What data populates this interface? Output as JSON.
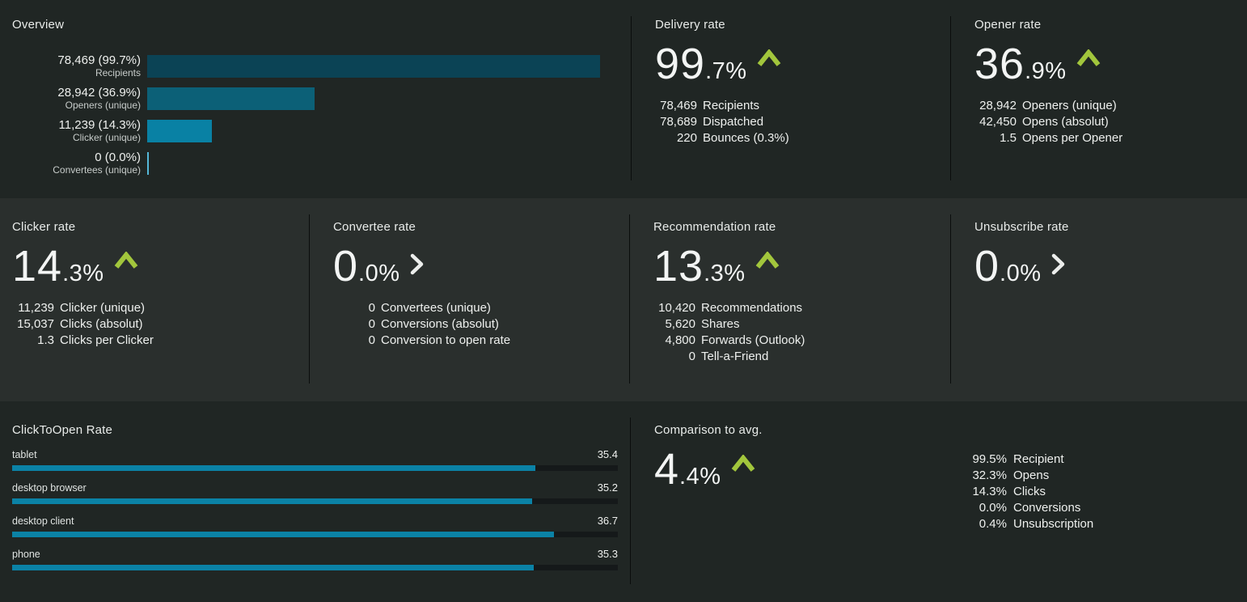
{
  "colors": {
    "row_dark_bg": "#202624",
    "row_light_bg": "#2a2f2d",
    "divider": "#0a0d0c",
    "accent_teal": "#0b82a6",
    "trend_up_green": "#a2c63c",
    "text_primary": "#eef0ee"
  },
  "chart_data": [
    {
      "id": "overview",
      "type": "bar",
      "orientation": "horizontal",
      "title": "Overview",
      "xlim": [
        0,
        100
      ],
      "unit": "percent",
      "rows": [
        {
          "value_label": "78,469 (99.7%)",
          "name": "Recipients",
          "count": 78469,
          "pct": 99.7,
          "color": "#0b4355"
        },
        {
          "value_label": "28,942 (36.9%)",
          "name": "Openers (unique)",
          "count": 28942,
          "pct": 36.9,
          "color": "#0c6077"
        },
        {
          "value_label": "11,239 (14.3%)",
          "name": "Clicker (unique)",
          "count": 11239,
          "pct": 14.3,
          "color": "#0981a4"
        },
        {
          "value_label": "0 (0.0%)",
          "name": "Convertees (unique)",
          "count": 0,
          "pct": 0.0,
          "color": "#54b8d9"
        }
      ]
    },
    {
      "id": "click_to_open",
      "type": "bar",
      "orientation": "horizontal",
      "title": "ClickToOpen Rate",
      "categories": [
        "tablet",
        "desktop browser",
        "desktop client",
        "phone"
      ],
      "values": [
        35.4,
        35.2,
        36.7,
        35.3
      ],
      "xlim": [
        0,
        41
      ],
      "grid": false,
      "legend": false
    }
  ],
  "metrics": {
    "delivery": {
      "title": "Delivery rate",
      "value_int": "99",
      "value_frac": ".7%",
      "trend": "up",
      "details": [
        {
          "num": "78,469",
          "label": "Recipients"
        },
        {
          "num": "78,689",
          "label": "Dispatched"
        },
        {
          "num": "220",
          "label": "Bounces (0.3%)"
        }
      ]
    },
    "opener": {
      "title": "Opener rate",
      "value_int": "36",
      "value_frac": ".9%",
      "trend": "up",
      "details": [
        {
          "num": "28,942",
          "label": "Openers (unique)"
        },
        {
          "num": "42,450",
          "label": "Opens (absolut)"
        },
        {
          "num": "1.5",
          "label": "Opens per Opener"
        }
      ]
    },
    "clicker": {
      "title": "Clicker rate",
      "value_int": "14",
      "value_frac": ".3%",
      "trend": "up",
      "details": [
        {
          "num": "11,239",
          "label": "Clicker (unique)"
        },
        {
          "num": "15,037",
          "label": "Clicks (absolut)"
        },
        {
          "num": "1.3",
          "label": "Clicks per Clicker"
        }
      ]
    },
    "convertee": {
      "title": "Convertee rate",
      "value_int": "0",
      "value_frac": ".0%",
      "trend": "neutral",
      "details": [
        {
          "num": "0",
          "label": "Convertees (unique)"
        },
        {
          "num": "0",
          "label": "Conversions (absolut)"
        },
        {
          "num": "0",
          "label": "Conversion to open rate"
        }
      ]
    },
    "recommendation": {
      "title": "Recommendation rate",
      "value_int": "13",
      "value_frac": ".3%",
      "trend": "up",
      "details": [
        {
          "num": "10,420",
          "label": "Recommendations"
        },
        {
          "num": "5,620",
          "label": "Shares"
        },
        {
          "num": "4,800",
          "label": "Forwards (Outlook)"
        },
        {
          "num": "0",
          "label": "Tell-a-Friend"
        }
      ]
    },
    "unsubscribe": {
      "title": "Unsubscribe rate",
      "value_int": "0",
      "value_frac": ".0%",
      "trend": "neutral",
      "details": []
    }
  },
  "comparison": {
    "title": "Comparison to avg.",
    "value_int": "4",
    "value_frac": ".4%",
    "trend": "up",
    "stats": [
      {
        "num": "99.5%",
        "label": "Recipient"
      },
      {
        "num": "32.3%",
        "label": "Opens"
      },
      {
        "num": "14.3%",
        "label": "Clicks"
      },
      {
        "num": "0.0%",
        "label": "Conversions"
      },
      {
        "num": "0.4%",
        "label": "Unsubscription"
      }
    ]
  }
}
